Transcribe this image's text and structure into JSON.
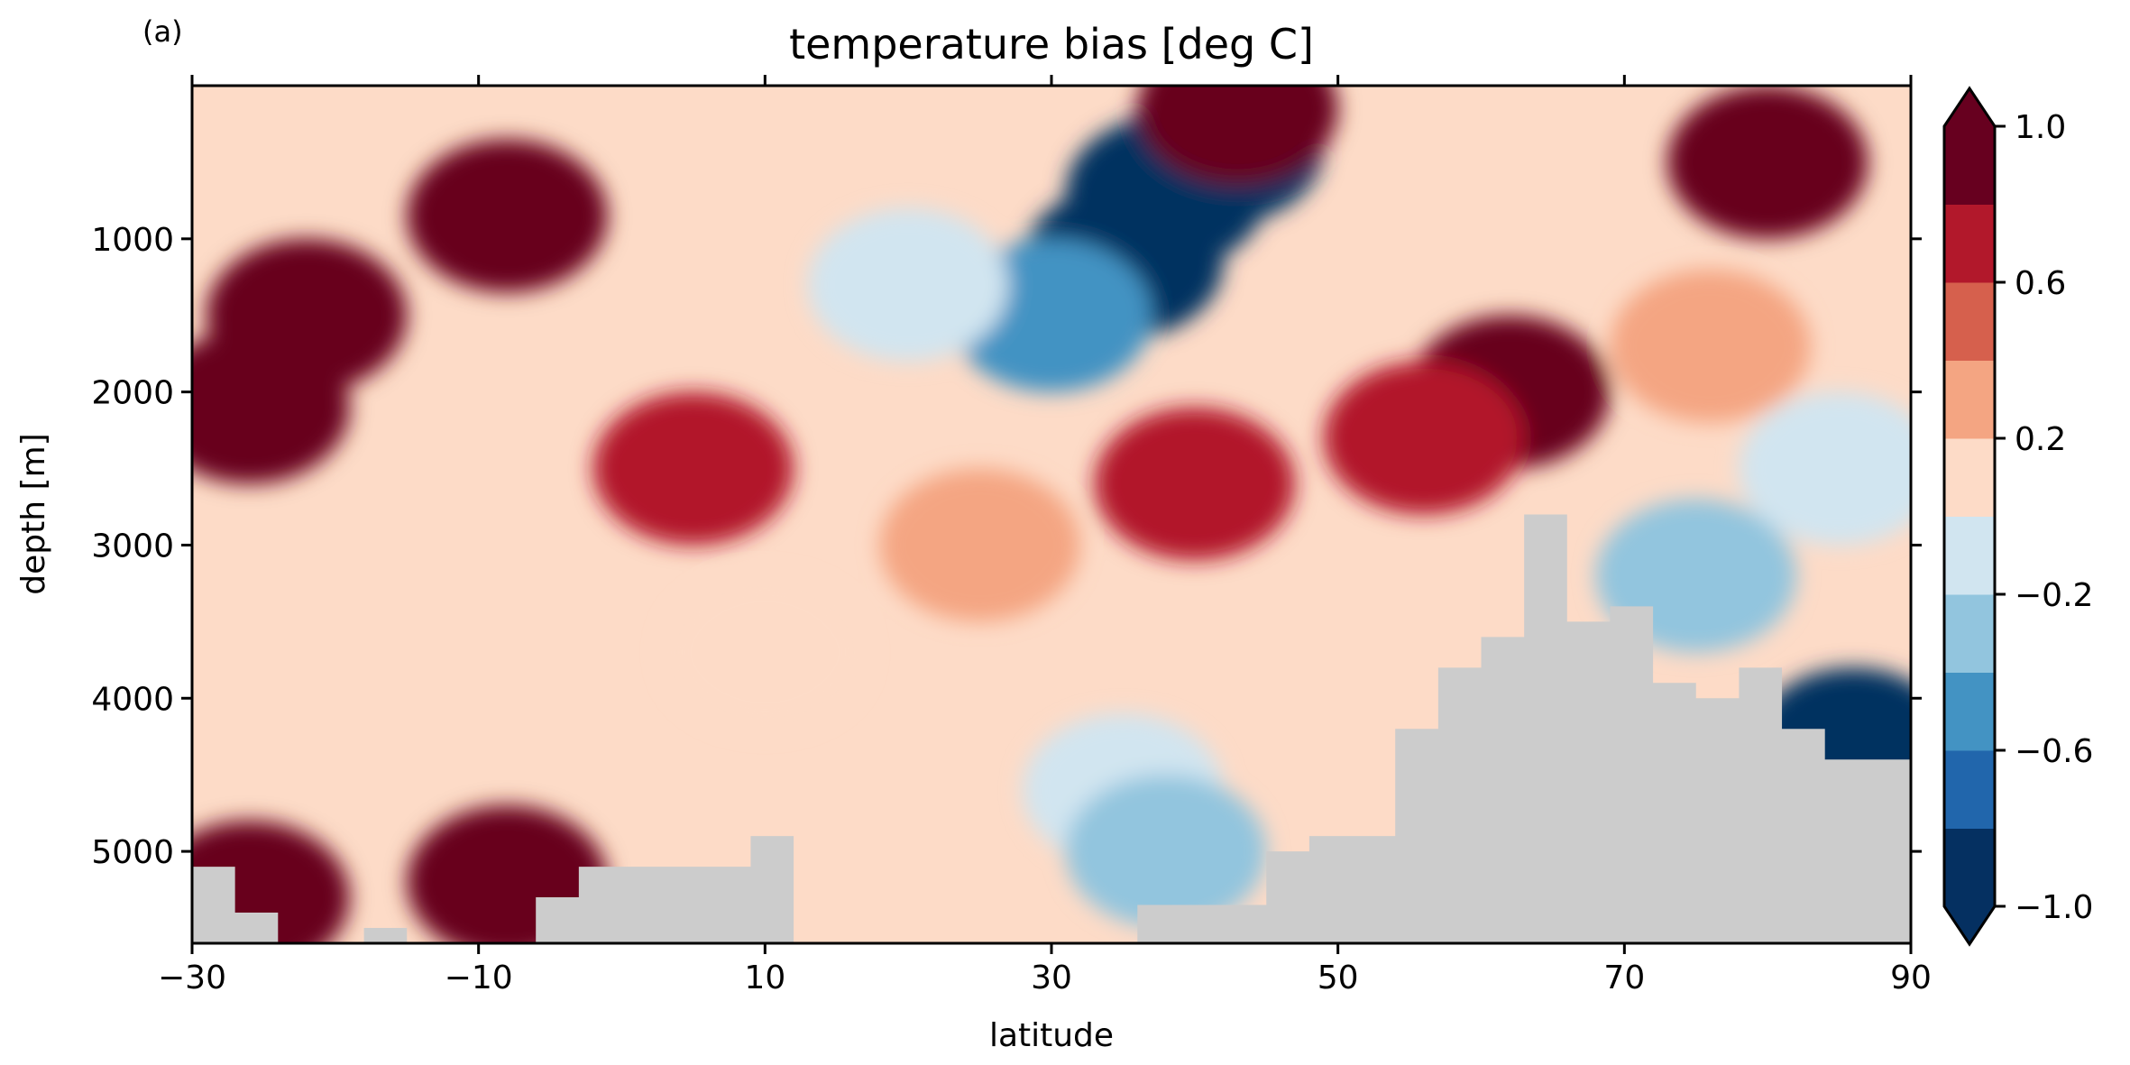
{
  "panel_label": "(a)",
  "chart_data": {
    "type": "heatmap",
    "title": "temperature bias [deg C]",
    "xlabel": "latitude",
    "ylabel": "depth [m]",
    "xlim": [
      -30,
      90
    ],
    "ylim": [
      5600,
      0
    ],
    "x_ticks": [
      -30,
      -10,
      10,
      30,
      50,
      70,
      90
    ],
    "x_tick_labels": [
      "−30",
      "−10",
      "10",
      "30",
      "50",
      "70",
      "90"
    ],
    "y_ticks": [
      1000,
      2000,
      3000,
      4000,
      5000
    ],
    "y_tick_labels": [
      "1000",
      "2000",
      "3000",
      "4000",
      "5000"
    ],
    "colorbar": {
      "levels": [
        -1.0,
        -0.8,
        -0.6,
        -0.4,
        -0.2,
        0.0,
        0.2,
        0.4,
        0.6,
        0.8,
        1.0
      ],
      "tick_values": [
        1.0,
        0.6,
        0.2,
        -0.2,
        -0.6,
        -1.0
      ],
      "tick_labels": [
        "1.0",
        "0.6",
        "0.2",
        "−0.2",
        "−0.6",
        "−1.0"
      ],
      "extend": "both",
      "colors": [
        "#053061",
        "#2166ac",
        "#4393c3",
        "#92c5de",
        "#d1e5f0",
        "#fddbc7",
        "#f4a582",
        "#d6604d",
        "#b2182b",
        "#67001f"
      ],
      "under_color": "#053061",
      "over_color": "#67001f"
    },
    "land_color": "#cccccc",
    "bias_features": [
      {
        "lat": 42,
        "depth": 400,
        "value": -1.2
      },
      {
        "lat": 38,
        "depth": 700,
        "value": -0.9
      },
      {
        "lat": 35,
        "depth": 1150,
        "value": -1.0
      },
      {
        "lat": 30,
        "depth": 1500,
        "value": -0.5
      },
      {
        "lat": 20,
        "depth": 1300,
        "value": -0.2
      },
      {
        "lat": 43,
        "depth": 150,
        "value": 1.0
      },
      {
        "lat": -26,
        "depth": 2100,
        "value": 1.0
      },
      {
        "lat": -22,
        "depth": 1500,
        "value": 0.8
      },
      {
        "lat": -8,
        "depth": 850,
        "value": 0.8
      },
      {
        "lat": 5,
        "depth": 2500,
        "value": 0.6
      },
      {
        "lat": 25,
        "depth": 3000,
        "value": 0.3
      },
      {
        "lat": 10,
        "depth": 3700,
        "value": 0.1
      },
      {
        "lat": 35,
        "depth": 4600,
        "value": -0.1
      },
      {
        "lat": 38,
        "depth": 5000,
        "value": -0.3
      },
      {
        "lat": -8,
        "depth": 5200,
        "value": 1.0
      },
      {
        "lat": -26,
        "depth": 5300,
        "value": 0.9
      },
      {
        "lat": 40,
        "depth": 2600,
        "value": 0.6
      },
      {
        "lat": 62,
        "depth": 2000,
        "value": 1.2
      },
      {
        "lat": 56,
        "depth": 2300,
        "value": 0.7
      },
      {
        "lat": 80,
        "depth": 500,
        "value": 1.2
      },
      {
        "lat": 76,
        "depth": 1700,
        "value": 0.2
      },
      {
        "lat": 75,
        "depth": 3200,
        "value": -0.4
      },
      {
        "lat": 86,
        "depth": 4300,
        "value": -1.0
      },
      {
        "lat": 85,
        "depth": 2500,
        "value": -0.1
      }
    ],
    "seafloor_depth": {
      "lat": [
        -30,
        -27,
        -24,
        -21,
        -18,
        -15,
        -12,
        -9,
        -6,
        -3,
        0,
        3,
        6,
        9,
        12,
        15,
        18,
        21,
        24,
        27,
        30,
        33,
        36,
        39,
        42,
        45,
        48,
        51,
        54,
        57,
        60,
        63,
        66,
        69,
        72,
        75,
        78,
        81,
        84,
        87,
        90
      ],
      "depth": [
        5100,
        5400,
        5600,
        5600,
        5500,
        5600,
        5600,
        5600,
        5300,
        5100,
        5100,
        5100,
        5100,
        4900,
        5600,
        5600,
        5600,
        5600,
        5600,
        5600,
        5600,
        5600,
        5350,
        5350,
        5350,
        5000,
        4900,
        4900,
        4200,
        3800,
        3600,
        2800,
        3500,
        3400,
        3900,
        4000,
        3800,
        4200,
        4400,
        4400,
        4400
      ]
    }
  }
}
